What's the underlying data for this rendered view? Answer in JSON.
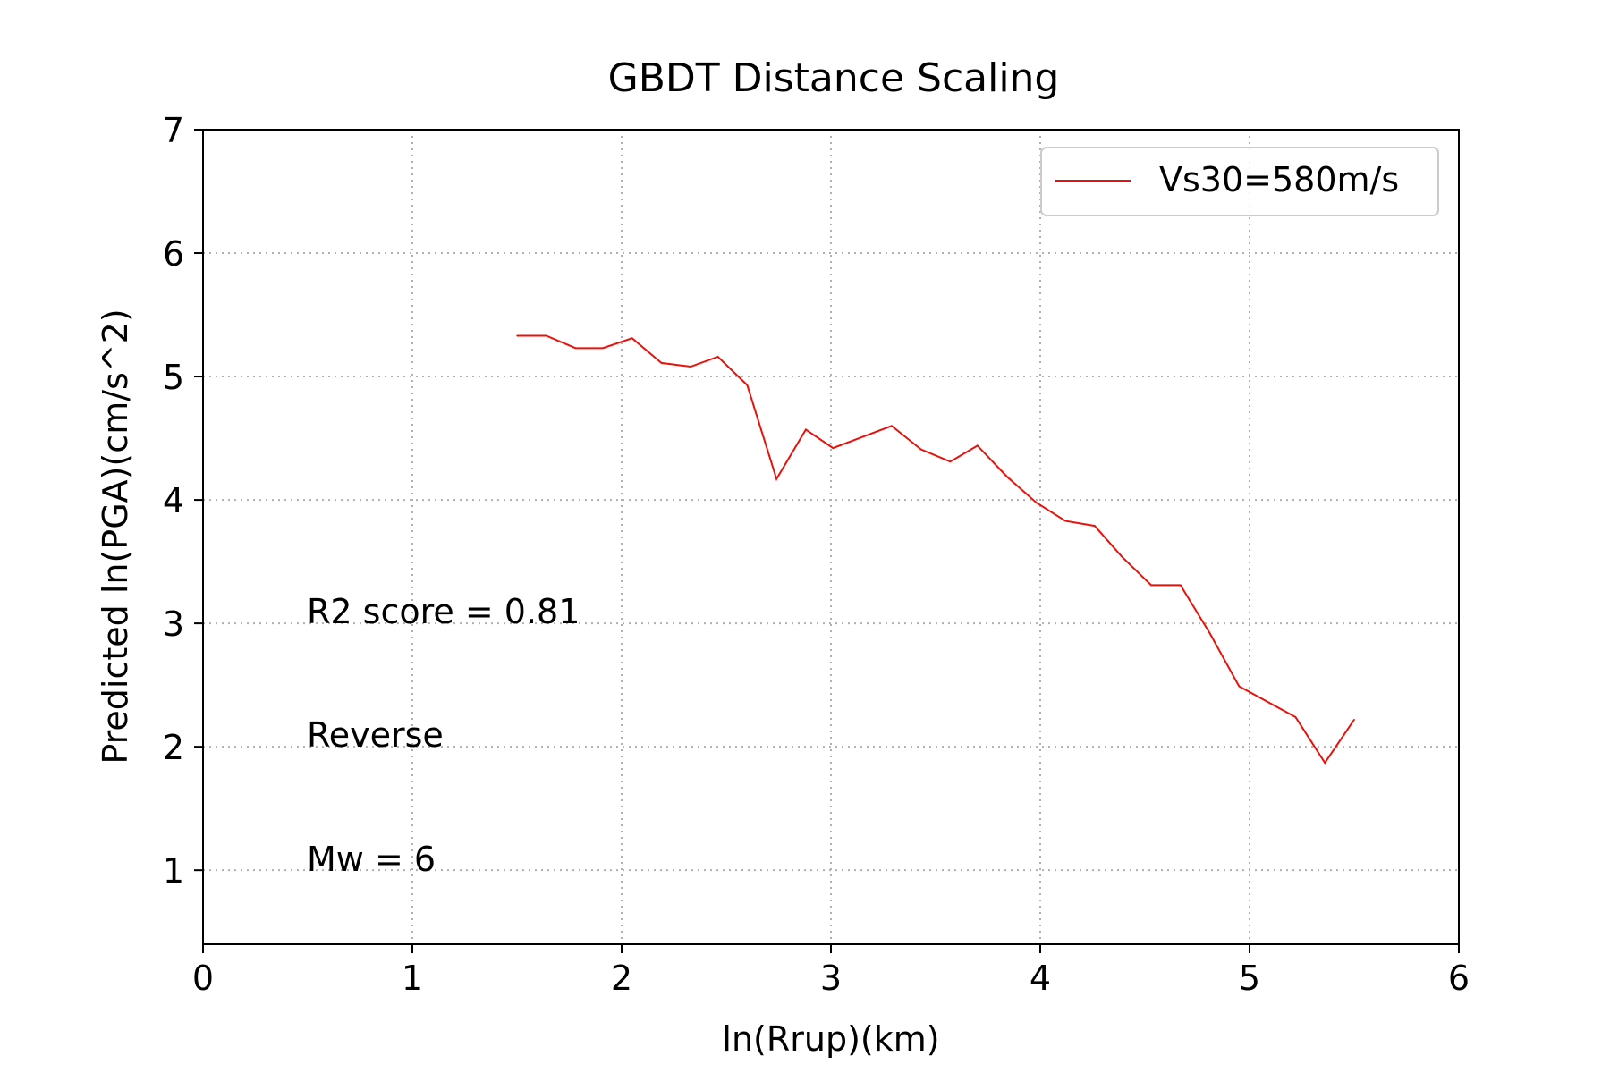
{
  "chart_data": {
    "type": "line",
    "title": "GBDT Distance Scaling",
    "xlabel": "ln(Rrup)(km)",
    "ylabel": "Predicted ln(PGA)(cm/s^2)",
    "xlim": [
      0,
      6
    ],
    "ylim": [
      0.4,
      7
    ],
    "xticks": [
      0,
      1,
      2,
      3,
      4,
      5,
      6
    ],
    "yticks": [
      1,
      2,
      3,
      4,
      5,
      6,
      7
    ],
    "grid": true,
    "legend_position": "upper right",
    "series": [
      {
        "name": "Vs30=580m/s",
        "color": "#e8120c",
        "x": [
          1.5,
          1.64,
          1.78,
          1.91,
          2.05,
          2.19,
          2.33,
          2.46,
          2.6,
          2.74,
          2.88,
          3.01,
          3.15,
          3.29,
          3.43,
          3.57,
          3.7,
          3.84,
          3.98,
          4.12,
          4.26,
          4.39,
          4.53,
          4.67,
          4.81,
          4.95,
          5.08,
          5.22,
          5.36,
          5.5
        ],
        "y": [
          5.33,
          5.33,
          5.23,
          5.23,
          5.31,
          5.11,
          5.08,
          5.16,
          4.93,
          4.17,
          4.57,
          4.42,
          4.51,
          4.6,
          4.41,
          4.31,
          4.44,
          4.19,
          3.98,
          3.83,
          3.79,
          3.54,
          3.31,
          3.31,
          2.92,
          2.49,
          2.37,
          2.24,
          1.87,
          2.22
        ]
      }
    ],
    "annotations": [
      "R2 score = 0.81",
      "Reverse",
      "Mw = 6"
    ]
  }
}
